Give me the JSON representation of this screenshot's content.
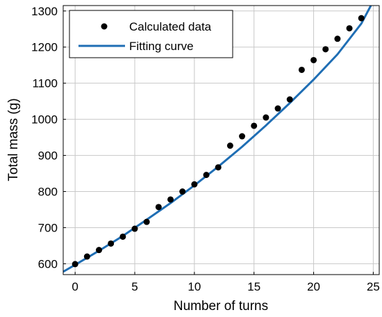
{
  "chart_data": {
    "type": "scatter",
    "xlabel": "Number of turns",
    "ylabel": "Total mass (g)",
    "xlim": [
      -1,
      25.5
    ],
    "ylim": [
      570,
      1315
    ],
    "x_ticks": [
      0,
      5,
      10,
      15,
      20,
      25
    ],
    "y_ticks": [
      600,
      700,
      800,
      900,
      1000,
      1100,
      1200,
      1300
    ],
    "grid": true,
    "legend_position": "top-left",
    "series": [
      {
        "name": "Calculated data",
        "kind": "scatter",
        "color": "#000000",
        "x": [
          0,
          1,
          2,
          3,
          4,
          5,
          6,
          7,
          8,
          9,
          10,
          11,
          12,
          13,
          14,
          15,
          16,
          17,
          18,
          19,
          20,
          21,
          22,
          23,
          24
        ],
        "y": [
          599,
          620,
          638,
          656,
          675,
          697,
          716,
          757,
          778,
          800,
          820,
          846,
          867,
          927,
          953,
          982,
          1005,
          1030,
          1055,
          1137,
          1164,
          1194,
          1223,
          1252,
          1280
        ]
      },
      {
        "name": "Fitting curve",
        "kind": "line",
        "color": "#1f6eb4",
        "x": [
          -1,
          0,
          2,
          4,
          6,
          8,
          10,
          12,
          14,
          16,
          18,
          20,
          22,
          24,
          24.8
        ],
        "y": [
          578,
          597,
          636,
          677,
          722,
          768,
          817,
          869,
          924,
          983,
          1045,
          1110,
          1180,
          1265,
          1315
        ]
      }
    ]
  }
}
